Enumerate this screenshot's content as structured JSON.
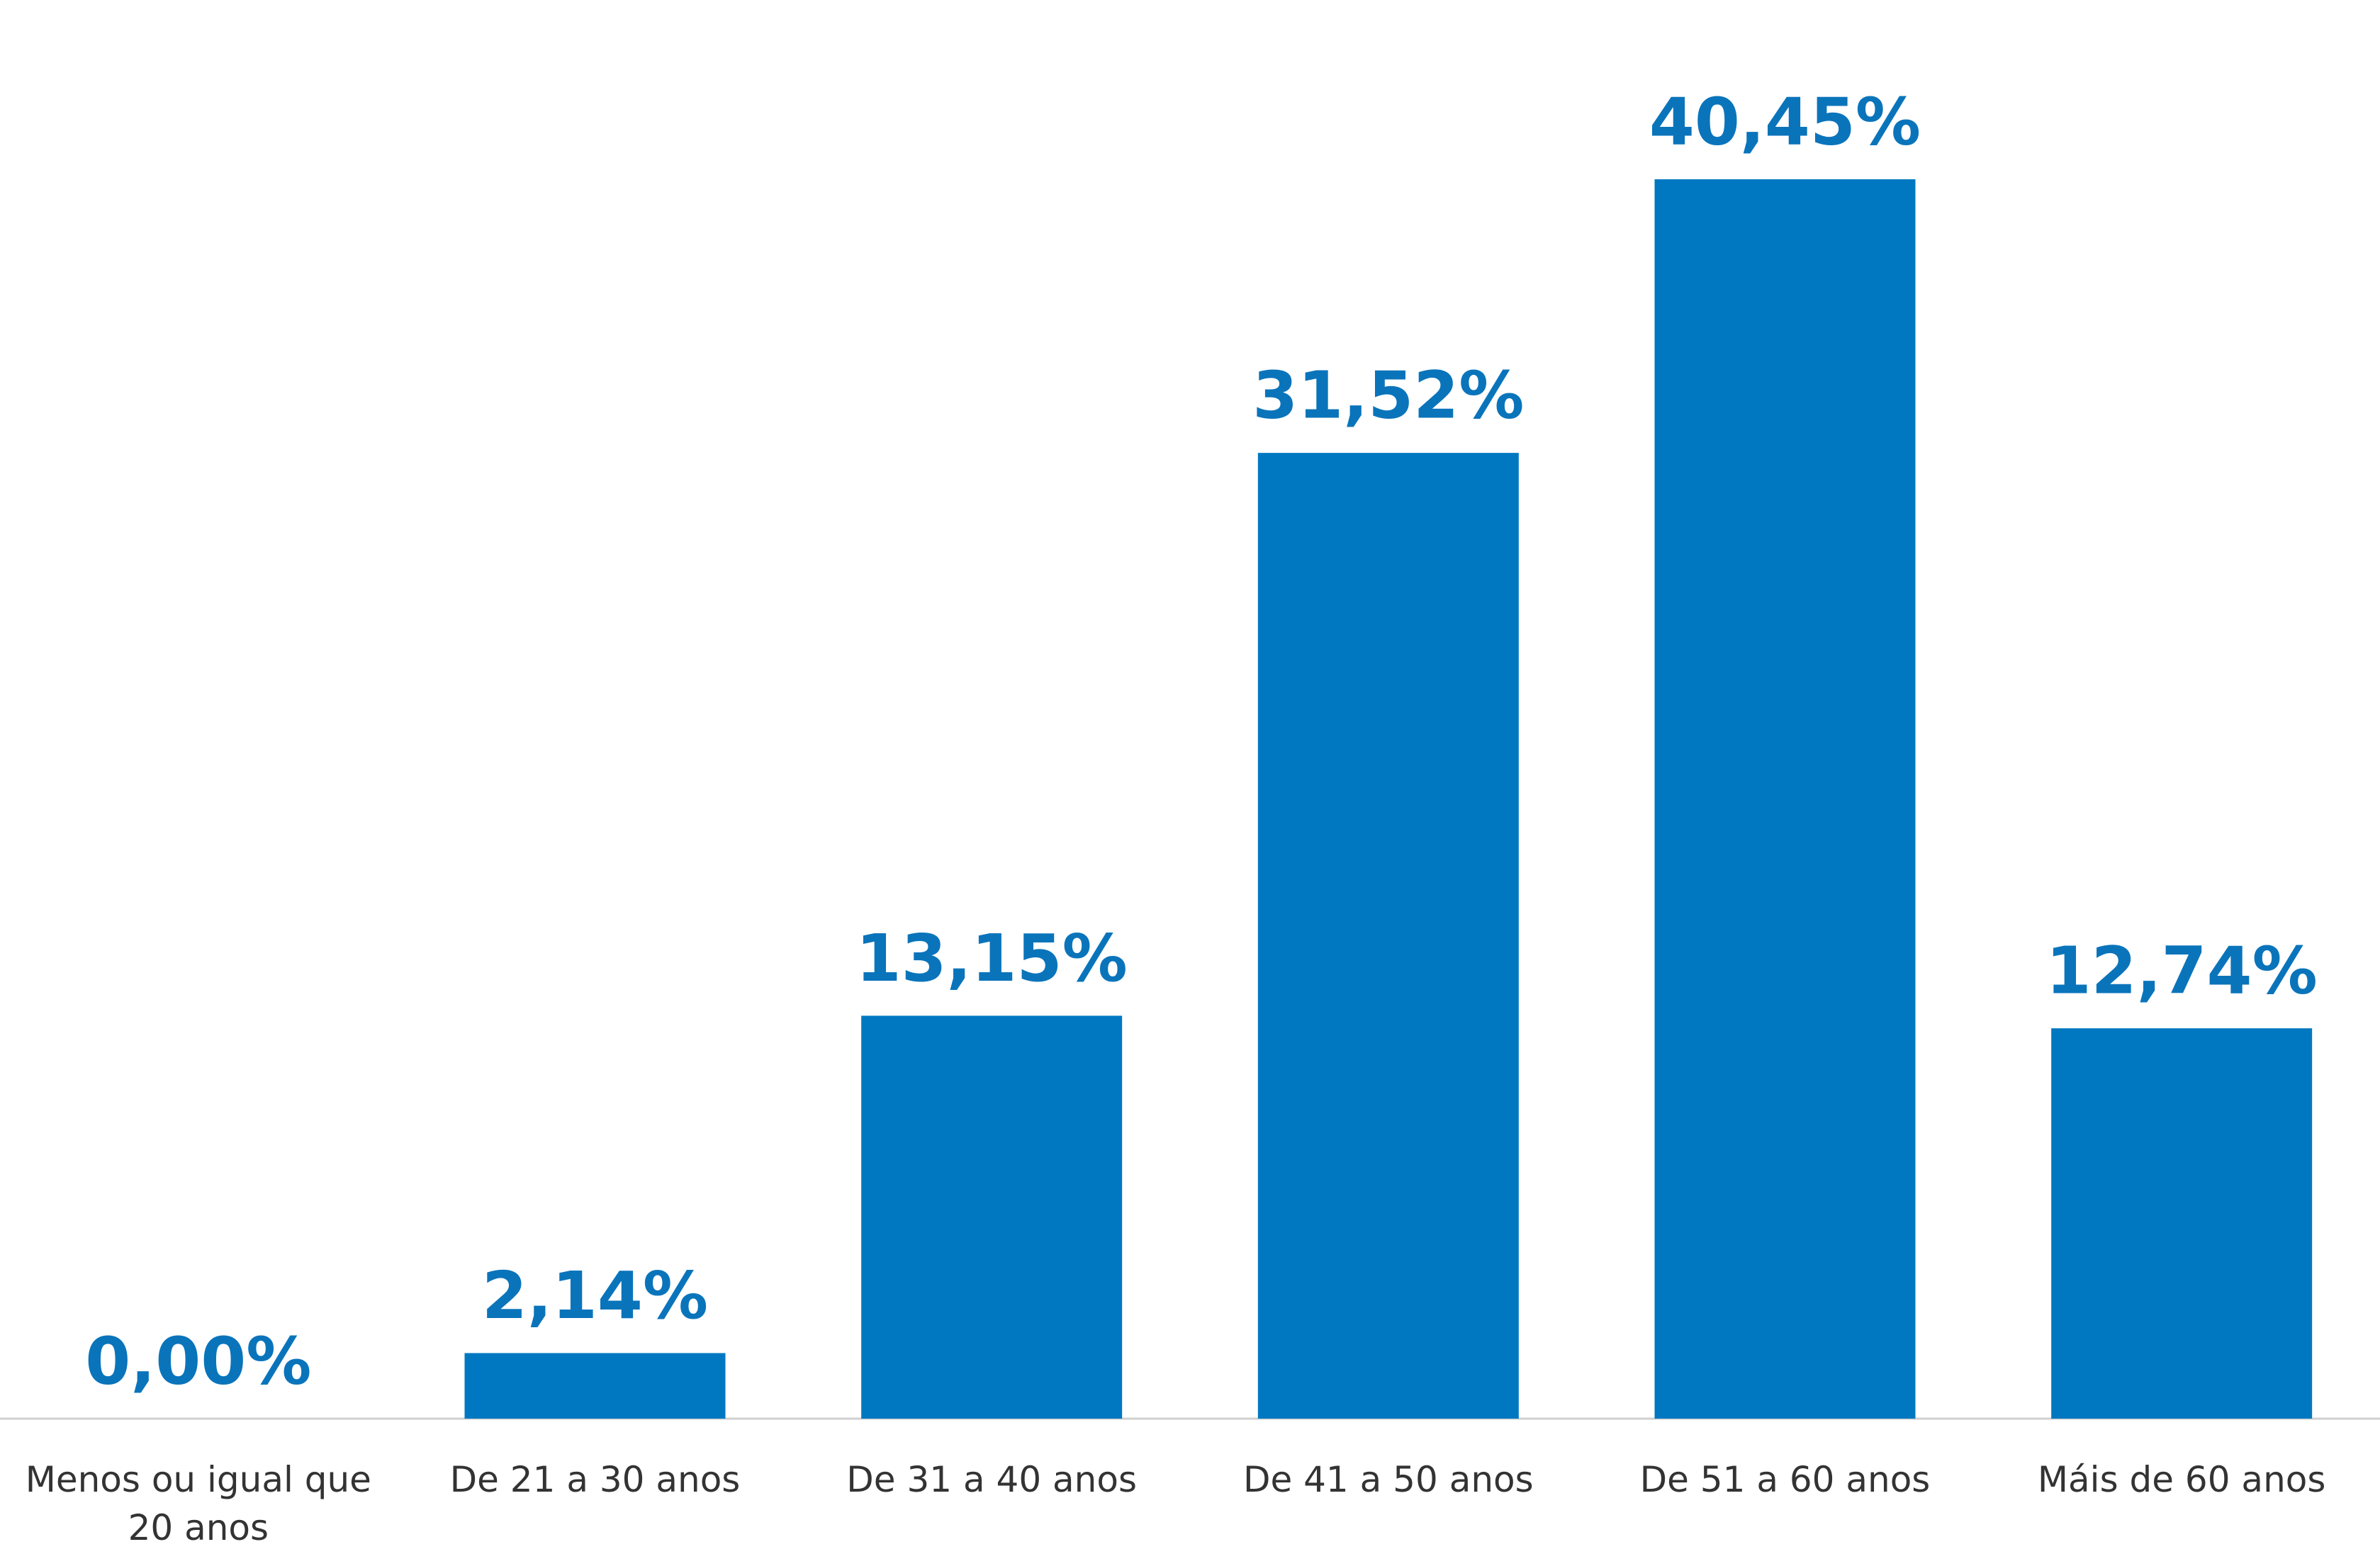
{
  "chart_data": {
    "type": "bar",
    "categories": [
      "Menos ou igual que 20 anos",
      "De 21 a 30 anos",
      "De 31 a 40 anos",
      "De 41 a 50 anos",
      "De 51 a 60 anos",
      "Máis de 60 anos"
    ],
    "values": [
      0,
      2.14,
      13.15,
      31.52,
      40.45,
      12.74
    ],
    "value_labels": [
      "0,00%",
      "2,14%",
      "13,15%",
      "31,52%",
      "40,45%",
      "12,74%"
    ],
    "color": "#0078c1"
  }
}
